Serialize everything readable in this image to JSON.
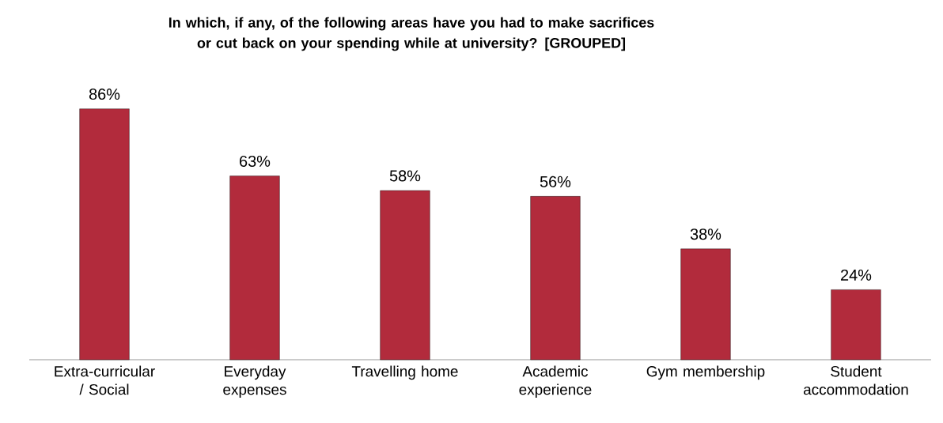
{
  "chart_data": {
    "type": "bar",
    "title": "In which, if any, of the following areas have you had to make sacrifices or cut back on your spending while at university? [GROUPED]",
    "categories": [
      "Extra-curricular / Social",
      "Everyday expenses",
      "Travelling home",
      "Academic experience",
      "Gym membership",
      "Student accommodation"
    ],
    "values": [
      86,
      63,
      58,
      56,
      38,
      24
    ],
    "value_labels": [
      "86%",
      "63%",
      "58%",
      "56%",
      "38%",
      "24%"
    ],
    "color": "#b22b3c"
  }
}
